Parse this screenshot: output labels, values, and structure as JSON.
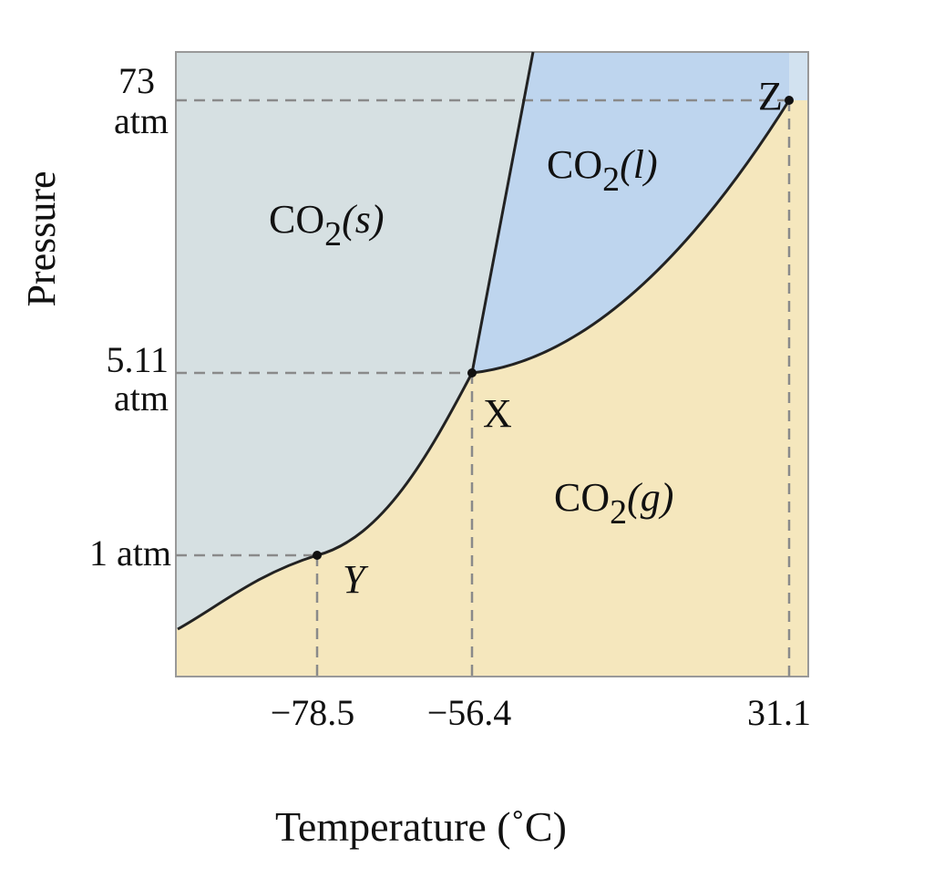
{
  "x_axis_title": "Temperature (˚C)",
  "y_axis_title": "Pressure",
  "x_ticks": [
    "−78.5",
    "−56.4",
    "31.1"
  ],
  "y_ticks": [
    [
      "73",
      "atm"
    ],
    [
      "5.11",
      "atm"
    ],
    [
      "1 atm"
    ]
  ],
  "regions": [
    {
      "formula": "CO",
      "subscript": "2",
      "phase": "(s)"
    },
    {
      "formula": "CO",
      "subscript": "2",
      "phase": "(l)"
    },
    {
      "formula": "CO",
      "subscript": "2",
      "phase": "(g)"
    }
  ],
  "points": [
    {
      "label": "Z"
    },
    {
      "label": "X"
    },
    {
      "label": "Y"
    }
  ]
}
